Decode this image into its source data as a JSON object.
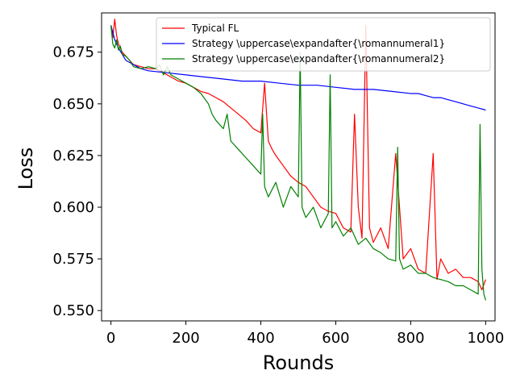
{
  "chart_data": {
    "type": "line",
    "title": "",
    "xlabel": "Rounds",
    "ylabel": "Loss",
    "xlim": [
      -25,
      1025
    ],
    "ylim": [
      0.545,
      0.694
    ],
    "xticks": [
      0,
      200,
      400,
      600,
      800,
      1000
    ],
    "yticks": [
      0.55,
      0.575,
      0.6,
      0.625,
      0.65,
      0.675
    ],
    "ytick_labels": [
      "0.550",
      "0.575",
      "0.600",
      "0.625",
      "0.650",
      "0.675"
    ],
    "legend_position": "top-right",
    "grid": false,
    "series": [
      {
        "name": "Typical FL",
        "color": "#ff0000",
        "x": [
          0,
          5,
          10,
          15,
          20,
          30,
          40,
          50,
          60,
          80,
          100,
          120,
          140,
          160,
          180,
          200,
          220,
          240,
          260,
          280,
          300,
          320,
          340,
          360,
          380,
          400,
          410,
          420,
          430,
          440,
          460,
          480,
          500,
          520,
          540,
          560,
          580,
          600,
          620,
          640,
          650,
          660,
          670,
          680,
          690,
          700,
          720,
          740,
          760,
          780,
          800,
          820,
          840,
          860,
          870,
          880,
          900,
          920,
          940,
          960,
          980,
          990,
          1000
        ],
        "y": [
          0.688,
          0.682,
          0.691,
          0.683,
          0.679,
          0.675,
          0.673,
          0.671,
          0.669,
          0.668,
          0.667,
          0.667,
          0.665,
          0.663,
          0.661,
          0.66,
          0.658,
          0.656,
          0.655,
          0.653,
          0.651,
          0.648,
          0.645,
          0.642,
          0.638,
          0.636,
          0.66,
          0.632,
          0.628,
          0.625,
          0.62,
          0.615,
          0.612,
          0.61,
          0.605,
          0.6,
          0.598,
          0.597,
          0.59,
          0.588,
          0.645,
          0.6,
          0.585,
          0.688,
          0.59,
          0.583,
          0.59,
          0.58,
          0.626,
          0.575,
          0.58,
          0.57,
          0.568,
          0.626,
          0.565,
          0.575,
          0.568,
          0.57,
          0.566,
          0.566,
          0.564,
          0.56,
          0.565
        ]
      },
      {
        "name": "Strategy \\uppercase\\expandafter{\\romannumeral1}",
        "color": "#0000ff",
        "x": [
          0,
          10,
          20,
          30,
          40,
          50,
          60,
          80,
          100,
          150,
          200,
          250,
          300,
          350,
          400,
          450,
          500,
          550,
          600,
          650,
          700,
          750,
          800,
          820,
          840,
          860,
          880,
          900,
          920,
          940,
          960,
          980,
          1000
        ],
        "y": [
          0.688,
          0.681,
          0.677,
          0.674,
          0.671,
          0.67,
          0.669,
          0.667,
          0.666,
          0.665,
          0.664,
          0.663,
          0.662,
          0.661,
          0.661,
          0.66,
          0.659,
          0.659,
          0.658,
          0.657,
          0.657,
          0.656,
          0.655,
          0.655,
          0.654,
          0.653,
          0.653,
          0.652,
          0.651,
          0.65,
          0.649,
          0.648,
          0.647
        ]
      },
      {
        "name": "Strategy \\uppercase\\expandafter{\\romannumeral2}",
        "color": "#008000",
        "x": [
          0,
          5,
          10,
          15,
          20,
          25,
          30,
          40,
          50,
          60,
          80,
          100,
          120,
          130,
          140,
          150,
          160,
          180,
          200,
          220,
          240,
          260,
          270,
          280,
          300,
          310,
          320,
          340,
          360,
          380,
          400,
          405,
          410,
          420,
          440,
          460,
          480,
          500,
          505,
          510,
          520,
          540,
          560,
          580,
          585,
          590,
          600,
          620,
          640,
          660,
          680,
          700,
          720,
          740,
          760,
          765,
          770,
          780,
          800,
          820,
          840,
          860,
          880,
          900,
          920,
          940,
          960,
          980,
          985,
          990,
          995,
          1000
        ],
        "y": [
          0.688,
          0.679,
          0.677,
          0.681,
          0.676,
          0.678,
          0.674,
          0.673,
          0.671,
          0.668,
          0.667,
          0.668,
          0.667,
          0.669,
          0.664,
          0.668,
          0.664,
          0.662,
          0.66,
          0.658,
          0.655,
          0.65,
          0.645,
          0.642,
          0.638,
          0.645,
          0.632,
          0.628,
          0.624,
          0.62,
          0.616,
          0.645,
          0.61,
          0.605,
          0.612,
          0.6,
          0.61,
          0.605,
          0.675,
          0.6,
          0.595,
          0.6,
          0.59,
          0.597,
          0.664,
          0.59,
          0.593,
          0.586,
          0.59,
          0.582,
          0.585,
          0.58,
          0.578,
          0.575,
          0.574,
          0.629,
          0.575,
          0.57,
          0.572,
          0.568,
          0.568,
          0.566,
          0.565,
          0.564,
          0.562,
          0.562,
          0.56,
          0.558,
          0.64,
          0.57,
          0.558,
          0.555
        ]
      }
    ]
  }
}
